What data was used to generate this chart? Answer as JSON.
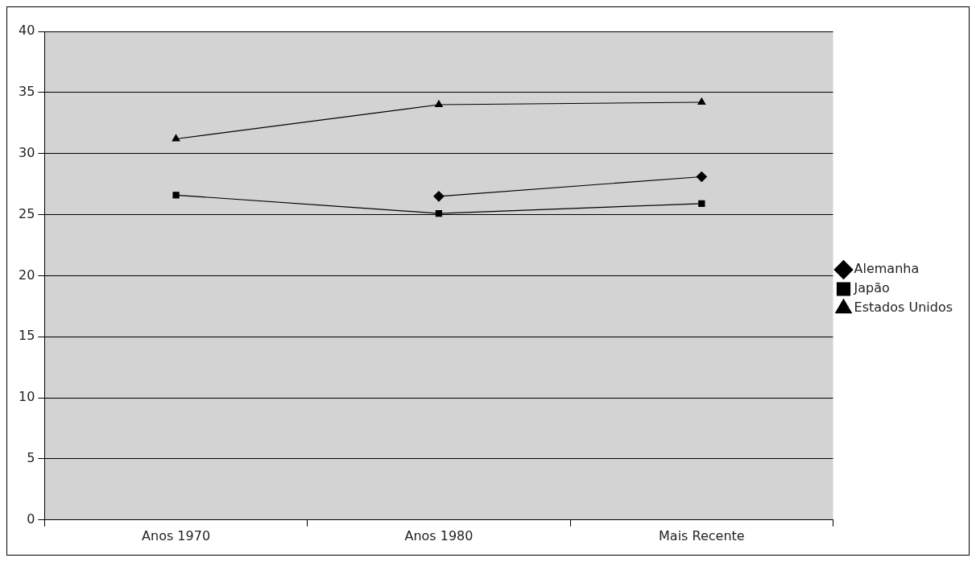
{
  "chart_data": {
    "type": "line",
    "categories": [
      "Anos 1970",
      "Anos 1980",
      "Mais Recente"
    ],
    "series": [
      {
        "name": "Alemanha",
        "color": "#000000",
        "marker": "diamond",
        "values": [
          null,
          26.5,
          28.1
        ]
      },
      {
        "name": "Japão",
        "color": "#000000",
        "marker": "square",
        "values": [
          26.6,
          25.1,
          25.9
        ]
      },
      {
        "name": "Estados Unidos",
        "color": "#000000",
        "marker": "triangle",
        "values": [
          31.2,
          34.0,
          34.2
        ]
      }
    ],
    "ylim": [
      0,
      40
    ],
    "yticks": [
      0,
      5,
      10,
      15,
      20,
      25,
      30,
      35,
      40
    ],
    "grid": "y",
    "legend": "right"
  }
}
